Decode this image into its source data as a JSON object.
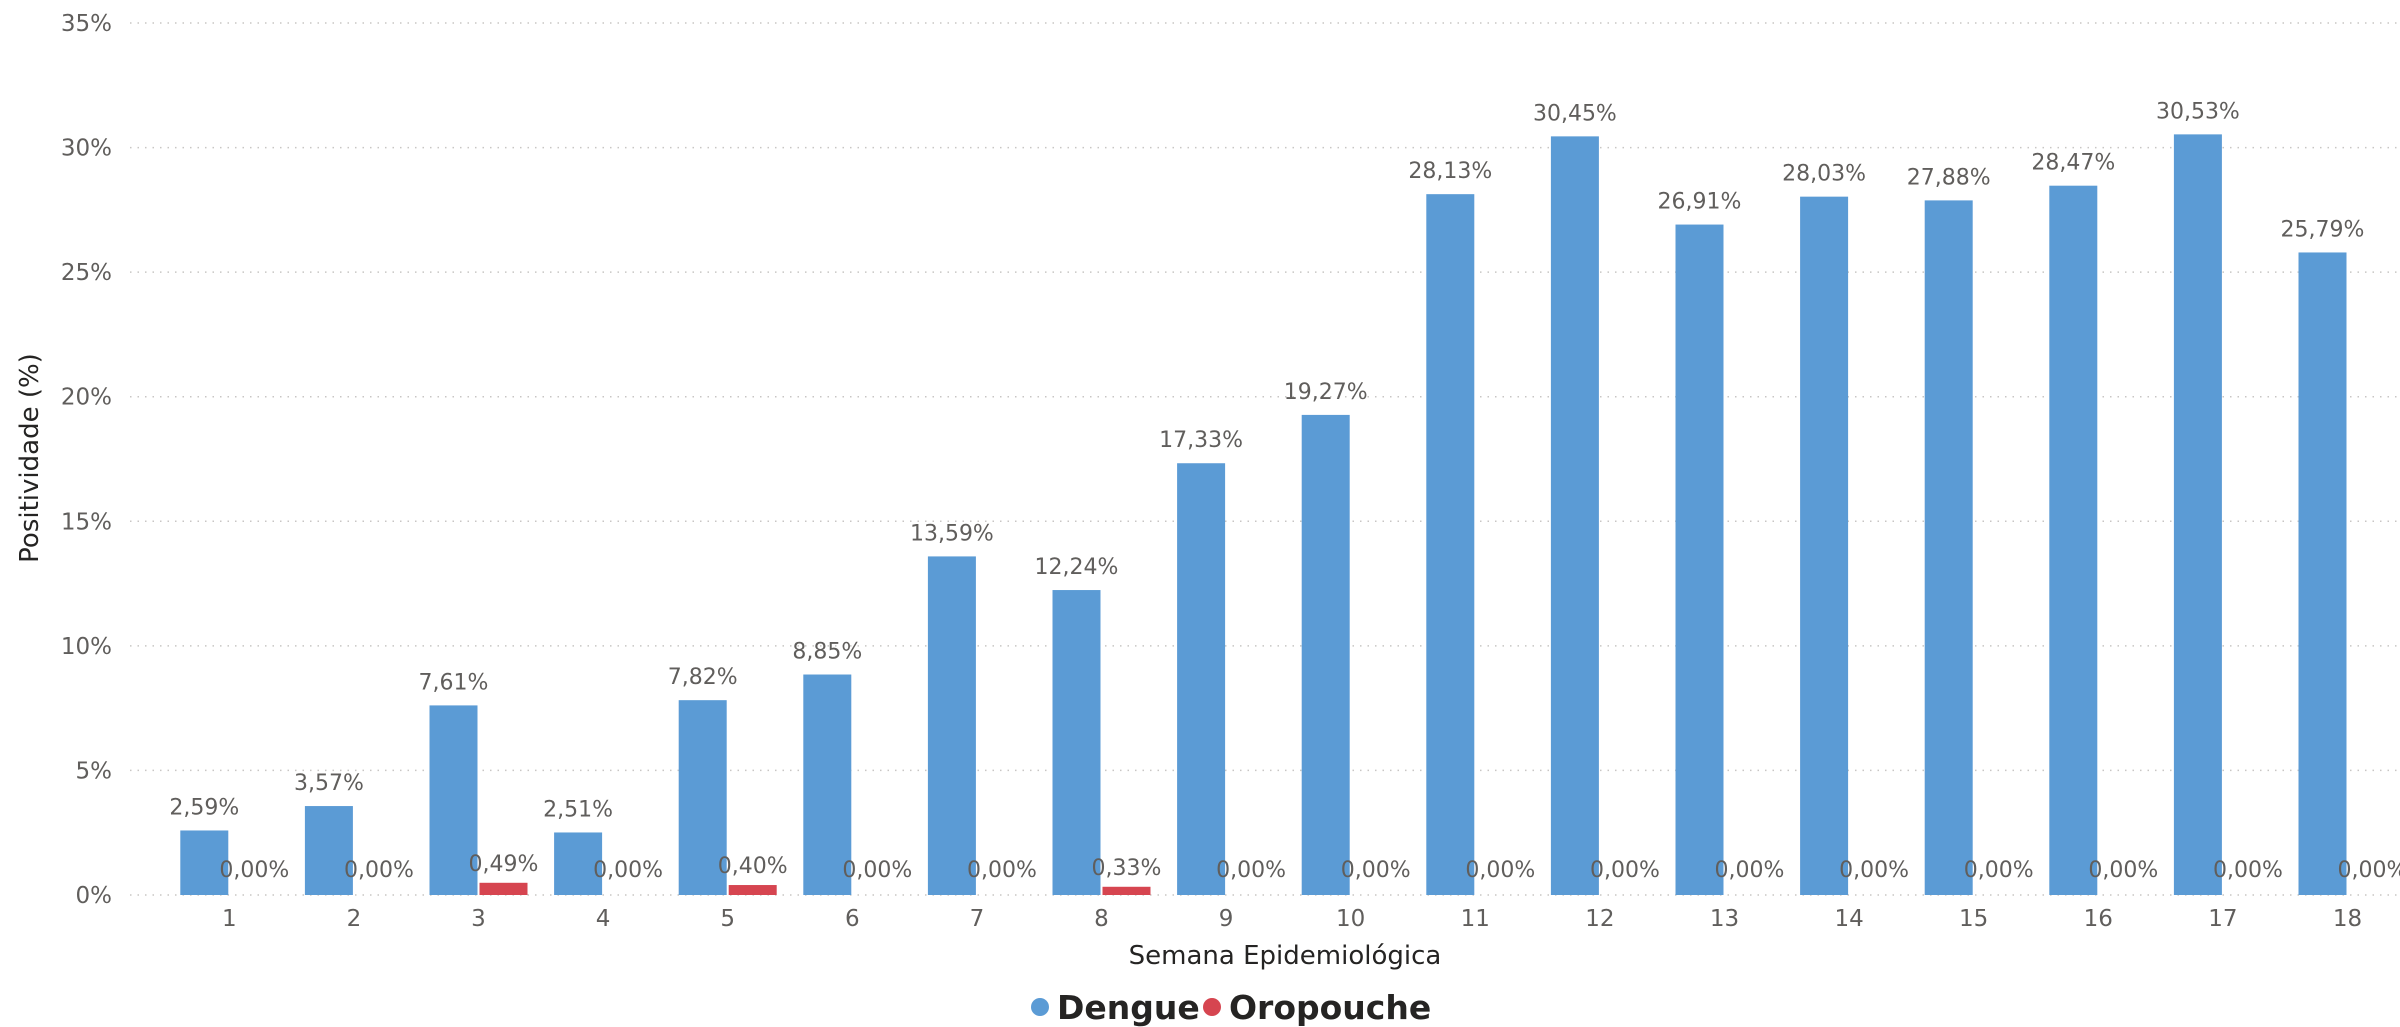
{
  "chart_data": {
    "type": "bar",
    "title": "",
    "xlabel": "Semana Epidemiológica",
    "ylabel": "Positividade (%)",
    "ylim": [
      0,
      35
    ],
    "yticks": [
      "0%",
      "5%",
      "10%",
      "15%",
      "20%",
      "25%",
      "30%",
      "35%"
    ],
    "grid": "horizontal dotted",
    "legend": "bottom-center",
    "categories": [
      "1",
      "2",
      "3",
      "4",
      "5",
      "6",
      "7",
      "8",
      "9",
      "10",
      "11",
      "12",
      "13",
      "14",
      "15",
      "16",
      "17",
      "18"
    ],
    "series": [
      {
        "name": "Dengue",
        "color": "#5b9bd5",
        "values": [
          2.59,
          3.57,
          7.61,
          2.51,
          7.82,
          8.85,
          13.59,
          12.24,
          17.33,
          19.27,
          28.13,
          30.45,
          26.91,
          28.03,
          27.88,
          28.47,
          30.53,
          25.79
        ],
        "labels": [
          "2,59%",
          "3,57%",
          "7,61%",
          "2,51%",
          "7,82%",
          "8,85%",
          "13,59%",
          "12,24%",
          "17,33%",
          "19,27%",
          "28,13%",
          "30,45%",
          "26,91%",
          "28,03%",
          "27,88%",
          "28,47%",
          "30,53%",
          "25,79%"
        ]
      },
      {
        "name": "Oropouche",
        "color": "#d64550",
        "values": [
          0,
          0,
          0.49,
          0,
          0.4,
          0,
          0,
          0.33,
          0,
          0,
          0,
          0,
          0,
          0,
          0,
          0,
          0,
          0
        ],
        "labels": [
          "0,00%",
          "0,00%",
          "0,49%",
          "0,00%",
          "0,40%",
          "0,00%",
          "0,00%",
          "0,33%",
          "0,00%",
          "0,00%",
          "0,00%",
          "0,00%",
          "0,00%",
          "0,00%",
          "0,00%",
          "0,00%",
          "0,00%",
          "0,00%"
        ]
      }
    ]
  }
}
